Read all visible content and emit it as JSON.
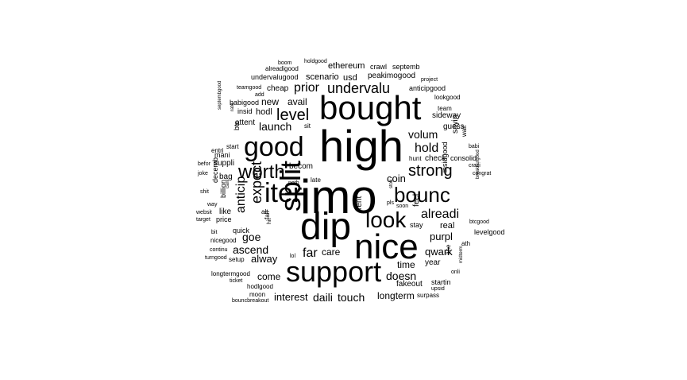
{
  "words": [
    "imo",
    "high",
    "bought",
    "dip",
    "nice",
    "support",
    "good",
    "iter",
    "split",
    "bounc",
    "look",
    "worth",
    "strong",
    "undervalu",
    "level",
    "alreadi",
    "hold",
    "expect",
    "anticip",
    "prior",
    "volum",
    "far",
    "goe",
    "purpl",
    "qwark",
    "doesn",
    "ascend",
    "launch",
    "alway",
    "interest",
    "daili",
    "touch",
    "longterm",
    "come",
    "care",
    "coin",
    "avail",
    "new",
    "hodl",
    "insid",
    "ethereum",
    "scenario",
    "usd",
    "peakimogood",
    "crawl",
    "septemb",
    "undervalugood",
    "alreadigood",
    "cheap",
    "anticipgood",
    "lookgood",
    "team",
    "sideway",
    "guess",
    "sayin",
    "wait",
    "hunt",
    "check",
    "consolid",
    "crazi",
    "babi",
    "congrat",
    "breakoutgood",
    "btcgood",
    "levelgood",
    "ath",
    "line",
    "insidgood",
    "year",
    "time",
    "fakeout",
    "startin",
    "upsid",
    "onli",
    "midterm",
    "surpass",
    "stay",
    "real",
    "feel",
    "rent",
    "soon",
    "pls",
    "stori",
    "noth",
    "becom",
    "late",
    "suppli",
    "mani",
    "start",
    "btc",
    "entri",
    "befor",
    "joke",
    "shit",
    "way",
    "websit",
    "target",
    "bit",
    "continu",
    "turngood",
    "nicegood",
    "longtermgood",
    "ticket",
    "hodlgood",
    "moon",
    "bouncbreakout",
    "setup",
    "quick",
    "price",
    "like",
    "billion",
    "decemb",
    "bag",
    "attent",
    "babigood",
    "teamgood",
    "add",
    "project",
    "boom",
    "holdgood",
    "septembgood",
    "rate",
    "cant",
    "sit",
    "lol",
    "alt",
    "fall",
    "hit"
  ]
}
